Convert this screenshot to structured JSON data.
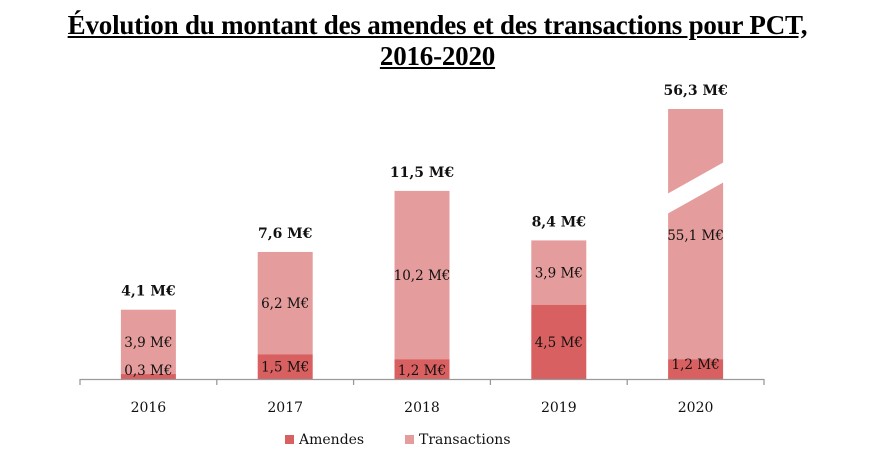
{
  "chart_data": {
    "type": "bar",
    "stacked": true,
    "title_line1": "Évolution du montant des amendes et des transactions pour PCT,",
    "title_line2": "2016-2020",
    "xlabel": "",
    "ylabel": "",
    "categories": [
      "2016",
      "2017",
      "2018",
      "2019",
      "2020"
    ],
    "series": [
      {
        "name": "Amendes",
        "color": "#d96060",
        "values": [
          0.3,
          1.5,
          1.2,
          4.5,
          1.2
        ],
        "labels": [
          "0,3 M€",
          "1,5 M€",
          "1,2 M€",
          "4,5 M€",
          "1,2 M€"
        ]
      },
      {
        "name": "Transactions",
        "color": "#e59c9c",
        "values": [
          3.9,
          6.2,
          10.2,
          3.9,
          55.1
        ],
        "labels": [
          "3,9 M€",
          "6,2 M€",
          "10,2 M€",
          "3,9 M€",
          "55,1 M€"
        ]
      }
    ],
    "totals": [
      4.1,
      7.6,
      11.5,
      8.4,
      56.3
    ],
    "total_labels": [
      "4,1 M€",
      "7,6 M€",
      "11,5 M€",
      "8,4 M€",
      "56,3 M€"
    ],
    "axis_break_category": "2020",
    "grid": false,
    "legend_position": "bottom",
    "y_axis_visible": false
  }
}
